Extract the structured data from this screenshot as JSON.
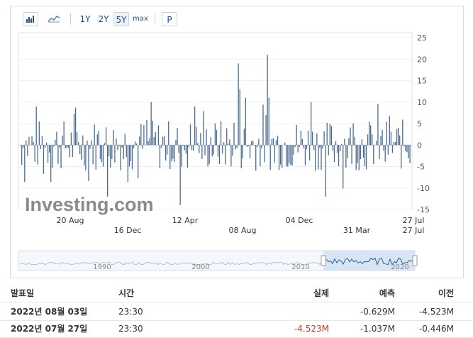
{
  "toolbar": {
    "bar_icon": "bar-chart-icon",
    "line_icon": "line-chart-icon",
    "ranges": [
      "1Y",
      "2Y",
      "5Y",
      "max"
    ],
    "selected_range": "5Y",
    "p_label": "P"
  },
  "chart_data": {
    "type": "bar",
    "y_ticks": [
      "25",
      "20",
      "15",
      "10",
      "5",
      "0",
      "-5",
      "-10",
      "-15"
    ],
    "ylim": [
      -15,
      25
    ],
    "x_labels_row1": [
      "20 Aug",
      "12 Apr",
      "04 Dec",
      "27 Jul"
    ],
    "x_labels_row2": [
      "16 Dec",
      "08 Aug",
      "31 Mar",
      "27 Jul"
    ],
    "navigator_labels": [
      "1990",
      "2000",
      "2010",
      "2020"
    ],
    "bar_color": "#4a6b8f",
    "watermark": "Investing.com"
  },
  "table": {
    "headers": {
      "date": "발표일",
      "time": "시간",
      "actual": "실제",
      "forecast": "예측",
      "previous": "이전"
    },
    "rows": [
      {
        "date": "2022년 08월 03일",
        "time": "23:30",
        "actual": "",
        "forecast": "-0.629M",
        "previous": "-4.523M"
      },
      {
        "date": "2022년 07월 27일",
        "time": "23:30",
        "actual": "-4.523M",
        "forecast": "-1.037M",
        "previous": "-0.446M"
      }
    ]
  }
}
